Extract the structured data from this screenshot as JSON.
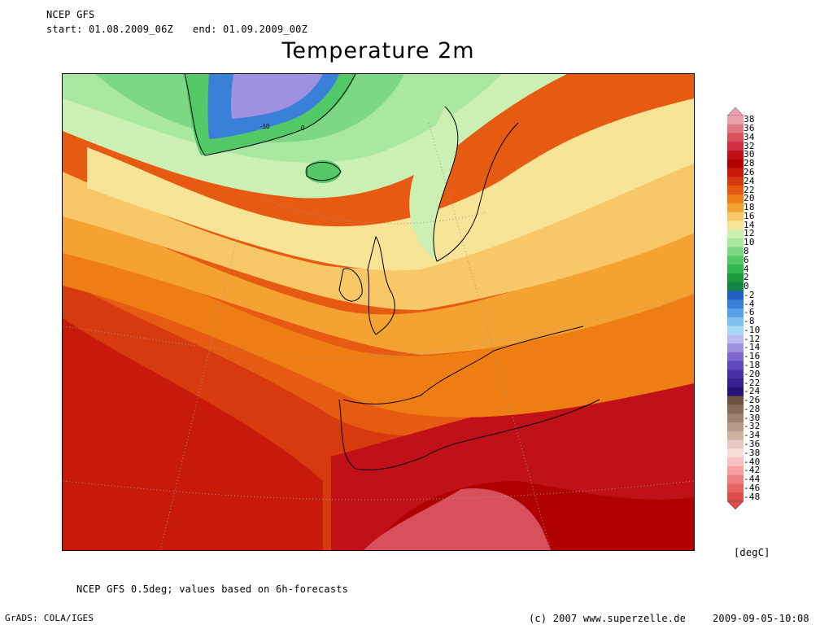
{
  "header": {
    "model": "NCEP GFS",
    "start": "start: 01.08.2009_06Z",
    "end": "end: 01.09.2009_00Z",
    "title": "Temperature 2m"
  },
  "map": {
    "contour_labels": [
      "-10",
      "0"
    ]
  },
  "legend": {
    "levels": [
      "38",
      "36",
      "34",
      "32",
      "30",
      "28",
      "26",
      "24",
      "22",
      "20",
      "18",
      "16",
      "14",
      "12",
      "10",
      "8",
      "6",
      "4",
      "2",
      "0",
      "-2",
      "-4",
      "-6",
      "-8",
      "-10",
      "-12",
      "-14",
      "-16",
      "-18",
      "-20",
      "-22",
      "-24",
      "-26",
      "-28",
      "-30",
      "-32",
      "-34",
      "-36",
      "-38",
      "-40",
      "-42",
      "-44",
      "-46",
      "-48"
    ],
    "colors": [
      "#e8a0a8",
      "#e07a84",
      "#d8505c",
      "#d03040",
      "#c01018",
      "#b00000",
      "#c81a0a",
      "#d83a10",
      "#e65a12",
      "#ee7e14",
      "#f4a232",
      "#f8c868",
      "#f8e496",
      "#ccf0b4",
      "#a8e8a0",
      "#7cd884",
      "#52c866",
      "#32b44e",
      "#1e9a3c",
      "#148444",
      "#2060c0",
      "#3880d8",
      "#5aa0e8",
      "#80c0f0",
      "#a8d8f8",
      "#bcb8f0",
      "#a090e0",
      "#8068d0",
      "#6048c0",
      "#4830a8",
      "#382090",
      "#281478",
      "#705040",
      "#886858",
      "#a08070",
      "#b89888",
      "#d0b0a0",
      "#e8c8c0",
      "#f8dcd8",
      "#f8c0c0",
      "#f4a0a0",
      "#ee8080",
      "#e86464",
      "#e04c4c"
    ],
    "unit": "[degC]"
  },
  "footer": {
    "footnote": "NCEP GFS 0.5deg; values based on 6h-forecasts",
    "grads": "GrADS: COLA/IGES",
    "copyright": "(c) 2007 www.superzelle.de",
    "timestamp": "2009-09-05-10:08"
  }
}
